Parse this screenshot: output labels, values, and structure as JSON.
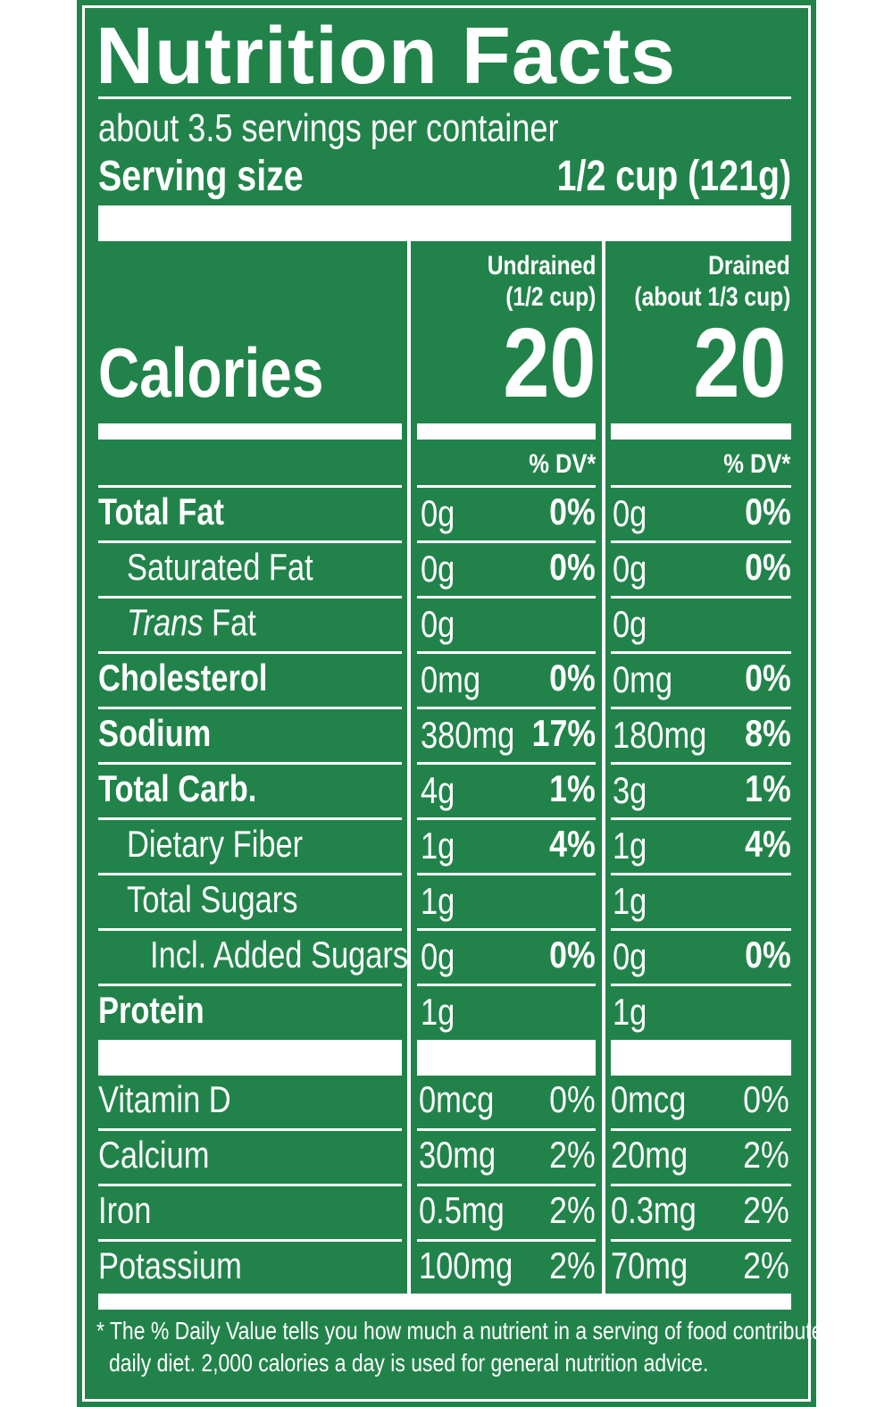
{
  "title": "Nutrition Facts",
  "servings_per_container": "about 3.5 servings per container",
  "serving_size_label": "Serving size",
  "serving_size_value": "1/2 cup (121g)",
  "calories_label": "Calories",
  "columns": [
    {
      "header_line1": "Undrained",
      "header_line2": "(1/2 cup)",
      "calories": "20",
      "dv_header": "% DV*"
    },
    {
      "header_line1": "Drained",
      "header_line2": "(about 1/3 cup)",
      "calories": "20",
      "dv_header": "% DV*"
    }
  ],
  "nutrients": [
    {
      "label": "Total Fat",
      "undrained_amount": "0g",
      "undrained_dv": "0%",
      "drained_amount": "0g",
      "drained_dv": "0%"
    },
    {
      "label": "Saturated Fat",
      "undrained_amount": "0g",
      "undrained_dv": "0%",
      "drained_amount": "0g",
      "drained_dv": "0%"
    },
    {
      "label_italic": "Trans",
      "label_rest": " Fat",
      "undrained_amount": "0g",
      "undrained_dv": "",
      "drained_amount": "0g",
      "drained_dv": ""
    },
    {
      "label": "Cholesterol",
      "undrained_amount": "0mg",
      "undrained_dv": "0%",
      "drained_amount": "0mg",
      "drained_dv": "0%"
    },
    {
      "label": "Sodium",
      "undrained_amount": "380mg",
      "undrained_dv": "17%",
      "drained_amount": "180mg",
      "drained_dv": "8%"
    },
    {
      "label": "Total Carb.",
      "undrained_amount": "4g",
      "undrained_dv": "1%",
      "drained_amount": "3g",
      "drained_dv": "1%"
    },
    {
      "label": "Dietary Fiber",
      "undrained_amount": "1g",
      "undrained_dv": "4%",
      "drained_amount": "1g",
      "drained_dv": "4%"
    },
    {
      "label": "Total Sugars",
      "undrained_amount": "1g",
      "undrained_dv": "",
      "drained_amount": "1g",
      "drained_dv": ""
    },
    {
      "label": "Incl. Added Sugars",
      "undrained_amount": "0g",
      "undrained_dv": "0%",
      "drained_amount": "0g",
      "drained_dv": "0%"
    },
    {
      "label": "Protein",
      "undrained_amount": "1g",
      "undrained_dv": "",
      "drained_amount": "1g",
      "drained_dv": ""
    }
  ],
  "vitamins": [
    {
      "label": "Vitamin D",
      "undrained_amount": "0mcg",
      "undrained_dv": "0%",
      "drained_amount": "0mcg",
      "drained_dv": "0%"
    },
    {
      "label": "Calcium",
      "undrained_amount": "30mg",
      "undrained_dv": "2%",
      "drained_amount": "20mg",
      "drained_dv": "2%"
    },
    {
      "label": "Iron",
      "undrained_amount": "0.5mg",
      "undrained_dv": "2%",
      "drained_amount": "0.3mg",
      "drained_dv": "2%"
    },
    {
      "label": "Potassium",
      "undrained_amount": "100mg",
      "undrained_dv": "2%",
      "drained_amount": "70mg",
      "drained_dv": "2%"
    }
  ],
  "footnote_line1": "* The % Daily Value tells you how much a nutrient in a serving of food contributes to a",
  "footnote_line2": "daily diet. 2,000 calories a day is used for general nutrition advice.",
  "colors": {
    "panel_green": "#22834a",
    "text": "#ffffff"
  }
}
